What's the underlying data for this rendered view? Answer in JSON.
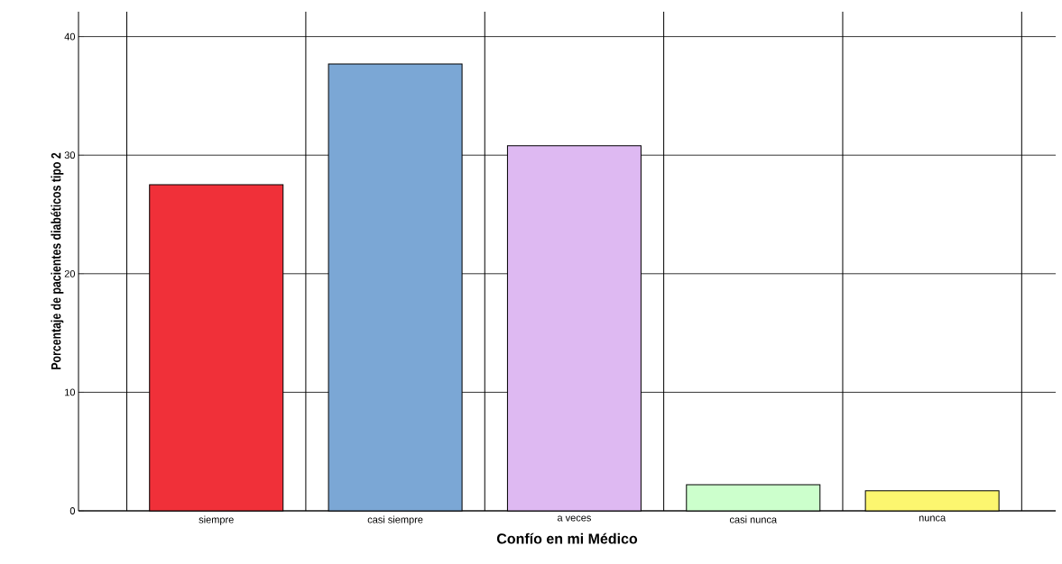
{
  "chart_data": {
    "type": "bar",
    "xlabel": "Confío en mi Médico",
    "ylabel": "Porcentaje de pacientes diabéticos tipo 2",
    "categories": [
      "siempre",
      "casi siempre",
      "a veces",
      "casi nunca",
      "nunca"
    ],
    "values": [
      27.5,
      37.7,
      30.8,
      2.2,
      1.7
    ],
    "colors": [
      "#f03039",
      "#7ba7d5",
      "#deb9f2",
      "#ccffcc",
      "#fcf66f"
    ],
    "ylim": [
      0,
      42.1
    ],
    "yticks": [
      0,
      10,
      20,
      30,
      40
    ],
    "grid": true
  }
}
